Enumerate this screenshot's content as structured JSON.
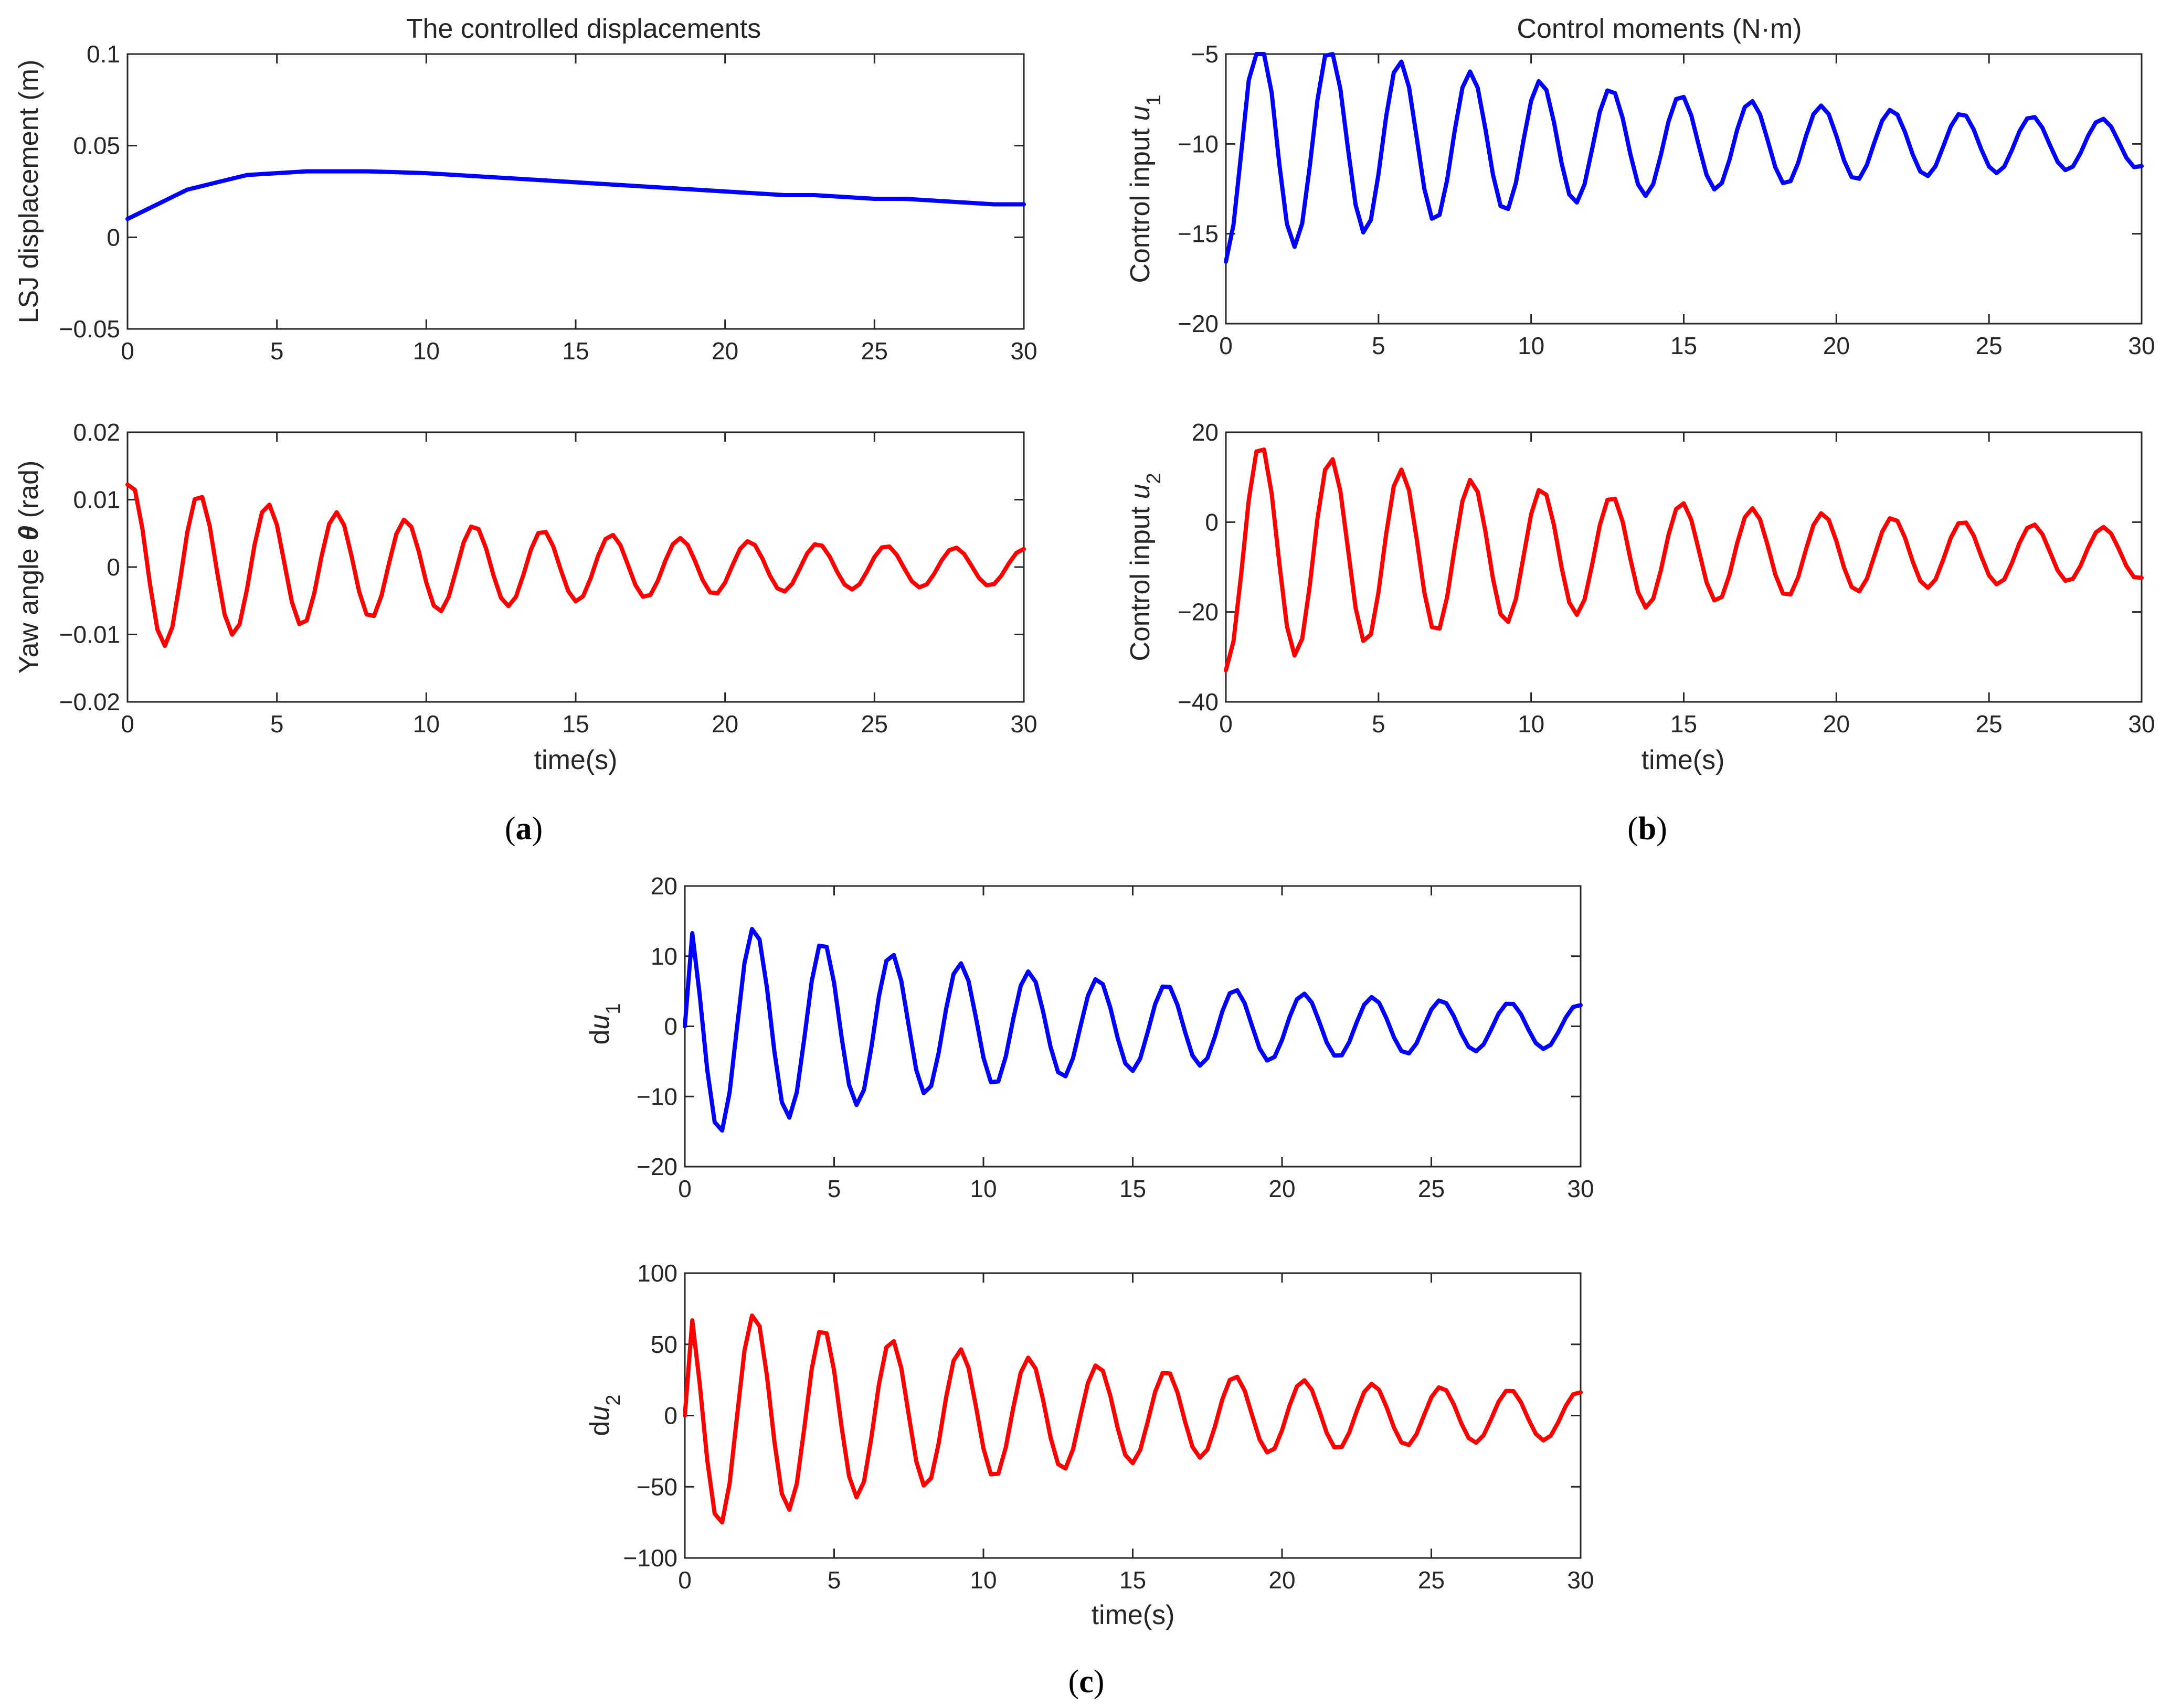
{
  "figure": {
    "panel_labels": [
      "a",
      "b",
      "c"
    ],
    "colors": {
      "blue": "#0000ff",
      "red": "#ff0000",
      "axis": "#262626"
    }
  },
  "chart_data": [
    {
      "id": "a1",
      "type": "line",
      "title": "The controlled displacements",
      "xlabel": "",
      "ylabel": "LSJ displacement (m)",
      "xlim": [
        0,
        30
      ],
      "ylim": [
        -0.05,
        0.1
      ],
      "xticks": [
        0,
        5,
        10,
        15,
        20,
        25,
        30
      ],
      "yticks": [
        -0.05,
        0,
        0.05,
        0.1
      ],
      "ytick_labels": [
        "−0.05",
        "0",
        "0.05",
        "0.1"
      ],
      "series": [
        {
          "name": "LSJ displacement",
          "color": "#0000ff",
          "x": [
            0,
            1,
            2,
            3,
            4,
            5,
            6,
            7,
            8,
            9,
            10,
            11,
            12,
            13,
            14,
            15,
            16,
            17,
            18,
            19,
            20,
            21,
            22,
            23,
            24,
            25,
            26,
            27,
            28,
            29,
            30
          ],
          "y": [
            0.01,
            0.018,
            0.026,
            0.03,
            0.034,
            0.035,
            0.036,
            0.036,
            0.036,
            0.0355,
            0.035,
            0.034,
            0.033,
            0.032,
            0.031,
            0.03,
            0.029,
            0.028,
            0.027,
            0.026,
            0.025,
            0.024,
            0.023,
            0.023,
            0.022,
            0.021,
            0.021,
            0.02,
            0.019,
            0.018,
            0.018
          ]
        }
      ]
    },
    {
      "id": "a2",
      "type": "line",
      "title": "",
      "xlabel": "time(s)",
      "ylabel_main": "Yaw angle ",
      "ylabel_symbol": "θ",
      "ylabel_unit": " (rad)",
      "xlim": [
        0,
        30
      ],
      "ylim": [
        -0.02,
        0.02
      ],
      "xticks": [
        0,
        5,
        10,
        15,
        20,
        25,
        30
      ],
      "yticks": [
        -0.02,
        -0.01,
        0,
        0.01,
        0.02
      ],
      "ytick_labels": [
        "−0.02",
        "−0.01",
        "0",
        "0.01",
        "0.02"
      ],
      "damped": {
        "offset": 0,
        "amp": 0.0112,
        "decay": 0.075,
        "period": 2.3,
        "phase": 1.3,
        "floor": 0.0015,
        "color": "#ff0000"
      }
    },
    {
      "id": "b1",
      "type": "line",
      "title": "Control moments (N·m)",
      "xlabel": "",
      "ylabel_main": "Control input ",
      "ylabel_symbol": "u",
      "ylabel_sub": "1",
      "xlim": [
        0,
        30
      ],
      "ylim": [
        -20,
        -5
      ],
      "xticks": [
        0,
        5,
        10,
        15,
        20,
        25,
        30
      ],
      "yticks": [
        -20,
        -15,
        -10,
        -5
      ],
      "ytick_labels": [
        "−20",
        "−15",
        "−10",
        "−5"
      ],
      "damped": {
        "offset": -10,
        "amp": 6.0,
        "decay": 0.07,
        "period": 2.3,
        "phase": -1.45,
        "floor": 0.6,
        "color": "#0000ff"
      }
    },
    {
      "id": "b2",
      "type": "line",
      "title": "",
      "xlabel": "time(s)",
      "ylabel_main": "Control input ",
      "ylabel_symbol": "u",
      "ylabel_sub": "2",
      "xlim": [
        0,
        30
      ],
      "ylim": [
        -40,
        20
      ],
      "xticks": [
        0,
        5,
        10,
        15,
        20,
        25,
        30
      ],
      "yticks": [
        -40,
        -20,
        0,
        20
      ],
      "ytick_labels": [
        "−40",
        "−20",
        "0",
        "20"
      ],
      "damped": {
        "offset": -7,
        "amp": 24,
        "decay": 0.063,
        "period": 2.3,
        "phase": -1.55,
        "floor": 2.0,
        "color": "#ff0000"
      }
    },
    {
      "id": "c1",
      "type": "line",
      "title": "",
      "xlabel": "",
      "ylabel_main": "d",
      "ylabel_symbol": "u",
      "ylabel_sub": "1",
      "xlim": [
        0,
        30
      ],
      "ylim": [
        -20,
        20
      ],
      "xticks": [
        0,
        5,
        10,
        15,
        20,
        25,
        30
      ],
      "yticks": [
        -20,
        -10,
        0,
        10,
        20
      ],
      "ytick_labels": [
        "−20",
        "−10",
        "0",
        "10",
        "20"
      ],
      "damped": {
        "offset": 0,
        "amp": 15,
        "decay": 0.075,
        "period": 2.3,
        "phase": 1.5,
        "floor": 1.5,
        "color": "#0000ff",
        "start": 0
      }
    },
    {
      "id": "c2",
      "type": "line",
      "title": "",
      "xlabel": "time(s)",
      "ylabel_main": "d",
      "ylabel_symbol": "u",
      "ylabel_sub": "2",
      "xlim": [
        0,
        30
      ],
      "ylim": [
        -100,
        100
      ],
      "xticks": [
        0,
        5,
        10,
        15,
        20,
        25,
        30
      ],
      "yticks": [
        -100,
        -50,
        0,
        50,
        100
      ],
      "ytick_labels": [
        "−100",
        "−50",
        "0",
        "50",
        "100"
      ],
      "damped": {
        "offset": 0,
        "amp": 75,
        "decay": 0.072,
        "period": 2.3,
        "phase": 1.5,
        "floor": 8,
        "color": "#ff0000",
        "start": 0
      }
    }
  ]
}
